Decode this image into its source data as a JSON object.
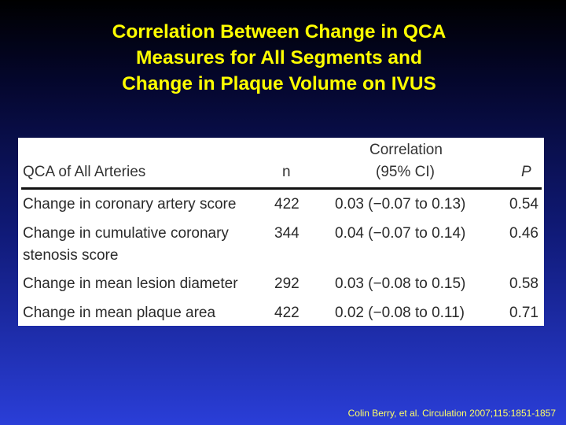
{
  "title": {
    "line1": "Correlation Between Change in QCA",
    "line2": "Measures for All Segments and",
    "line3": "Change in Plaque Volume on IVUS"
  },
  "table": {
    "headers": {
      "label": "QCA of All Arteries",
      "n": "n",
      "corr_line1": "Correlation",
      "corr_line2": "(95% CI)",
      "p": "P"
    },
    "rows": [
      {
        "label": "Change in coronary artery score",
        "label2": "",
        "n": "422",
        "corr": "0.03 (−0.07 to 0.13)",
        "p": "0.54"
      },
      {
        "label": "Change in cumulative coronary",
        "label2": "stenosis score",
        "n": "344",
        "corr": "0.04 (−0.07 to 0.14)",
        "p": "0.46"
      },
      {
        "label": "Change in mean lesion diameter",
        "label2": "",
        "n": "292",
        "corr": "0.03 (−0.08 to 0.15)",
        "p": "0.58"
      },
      {
        "label": "Change in mean plaque area",
        "label2": "",
        "n": "422",
        "corr": "0.02 (−0.08 to 0.11)",
        "p": "0.71"
      }
    ]
  },
  "citation": "Colin Berry, et al. Circulation 2007;115:1851-1857",
  "colors": {
    "title": "#ffff00",
    "citation": "#ffff66",
    "panel": "#ffffff",
    "background_top": "#000000",
    "background_bottom": "#2a3ed8"
  }
}
